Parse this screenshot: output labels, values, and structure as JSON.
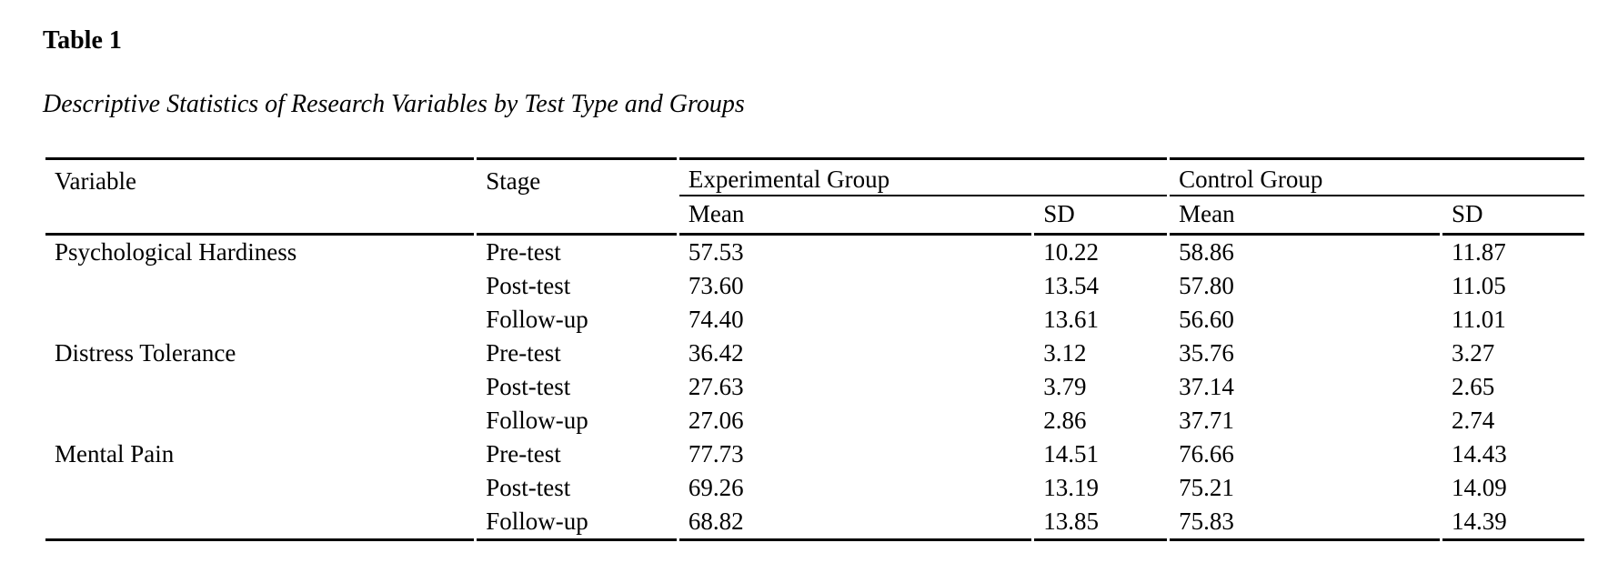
{
  "page": {
    "table_label": "Table 1",
    "table_caption": "Descriptive Statistics of Research Variables by Test Type and Groups"
  },
  "table": {
    "header": {
      "variable": "Variable",
      "stage": "Stage",
      "experimental_group": "Experimental Group",
      "control_group": "Control Group",
      "mean": "Mean",
      "sd": "SD"
    },
    "rows": [
      {
        "variable": "Psychological Hardiness",
        "stage": "Pre-test",
        "exp_mean": "57.53",
        "exp_sd": "10.22",
        "ctrl_mean": "58.86",
        "ctrl_sd": "11.87"
      },
      {
        "variable": "",
        "stage": "Post-test",
        "exp_mean": "73.60",
        "exp_sd": "13.54",
        "ctrl_mean": "57.80",
        "ctrl_sd": "11.05"
      },
      {
        "variable": "",
        "stage": "Follow-up",
        "exp_mean": "74.40",
        "exp_sd": "13.61",
        "ctrl_mean": "56.60",
        "ctrl_sd": "11.01"
      },
      {
        "variable": "Distress Tolerance",
        "stage": "Pre-test",
        "exp_mean": "36.42",
        "exp_sd": "3.12",
        "ctrl_mean": "35.76",
        "ctrl_sd": "3.27"
      },
      {
        "variable": "",
        "stage": "Post-test",
        "exp_mean": "27.63",
        "exp_sd": "3.79",
        "ctrl_mean": "37.14",
        "ctrl_sd": "2.65"
      },
      {
        "variable": "",
        "stage": "Follow-up",
        "exp_mean": "27.06",
        "exp_sd": "2.86",
        "ctrl_mean": "37.71",
        "ctrl_sd": "2.74"
      },
      {
        "variable": "Mental Pain",
        "stage": "Pre-test",
        "exp_mean": "77.73",
        "exp_sd": "14.51",
        "ctrl_mean": "76.66",
        "ctrl_sd": "14.43"
      },
      {
        "variable": "",
        "stage": "Post-test",
        "exp_mean": "69.26",
        "exp_sd": "13.19",
        "ctrl_mean": "75.21",
        "ctrl_sd": "14.09"
      },
      {
        "variable": "",
        "stage": "Follow-up",
        "exp_mean": "68.82",
        "exp_sd": "13.85",
        "ctrl_mean": "75.83",
        "ctrl_sd": "14.39"
      }
    ]
  }
}
